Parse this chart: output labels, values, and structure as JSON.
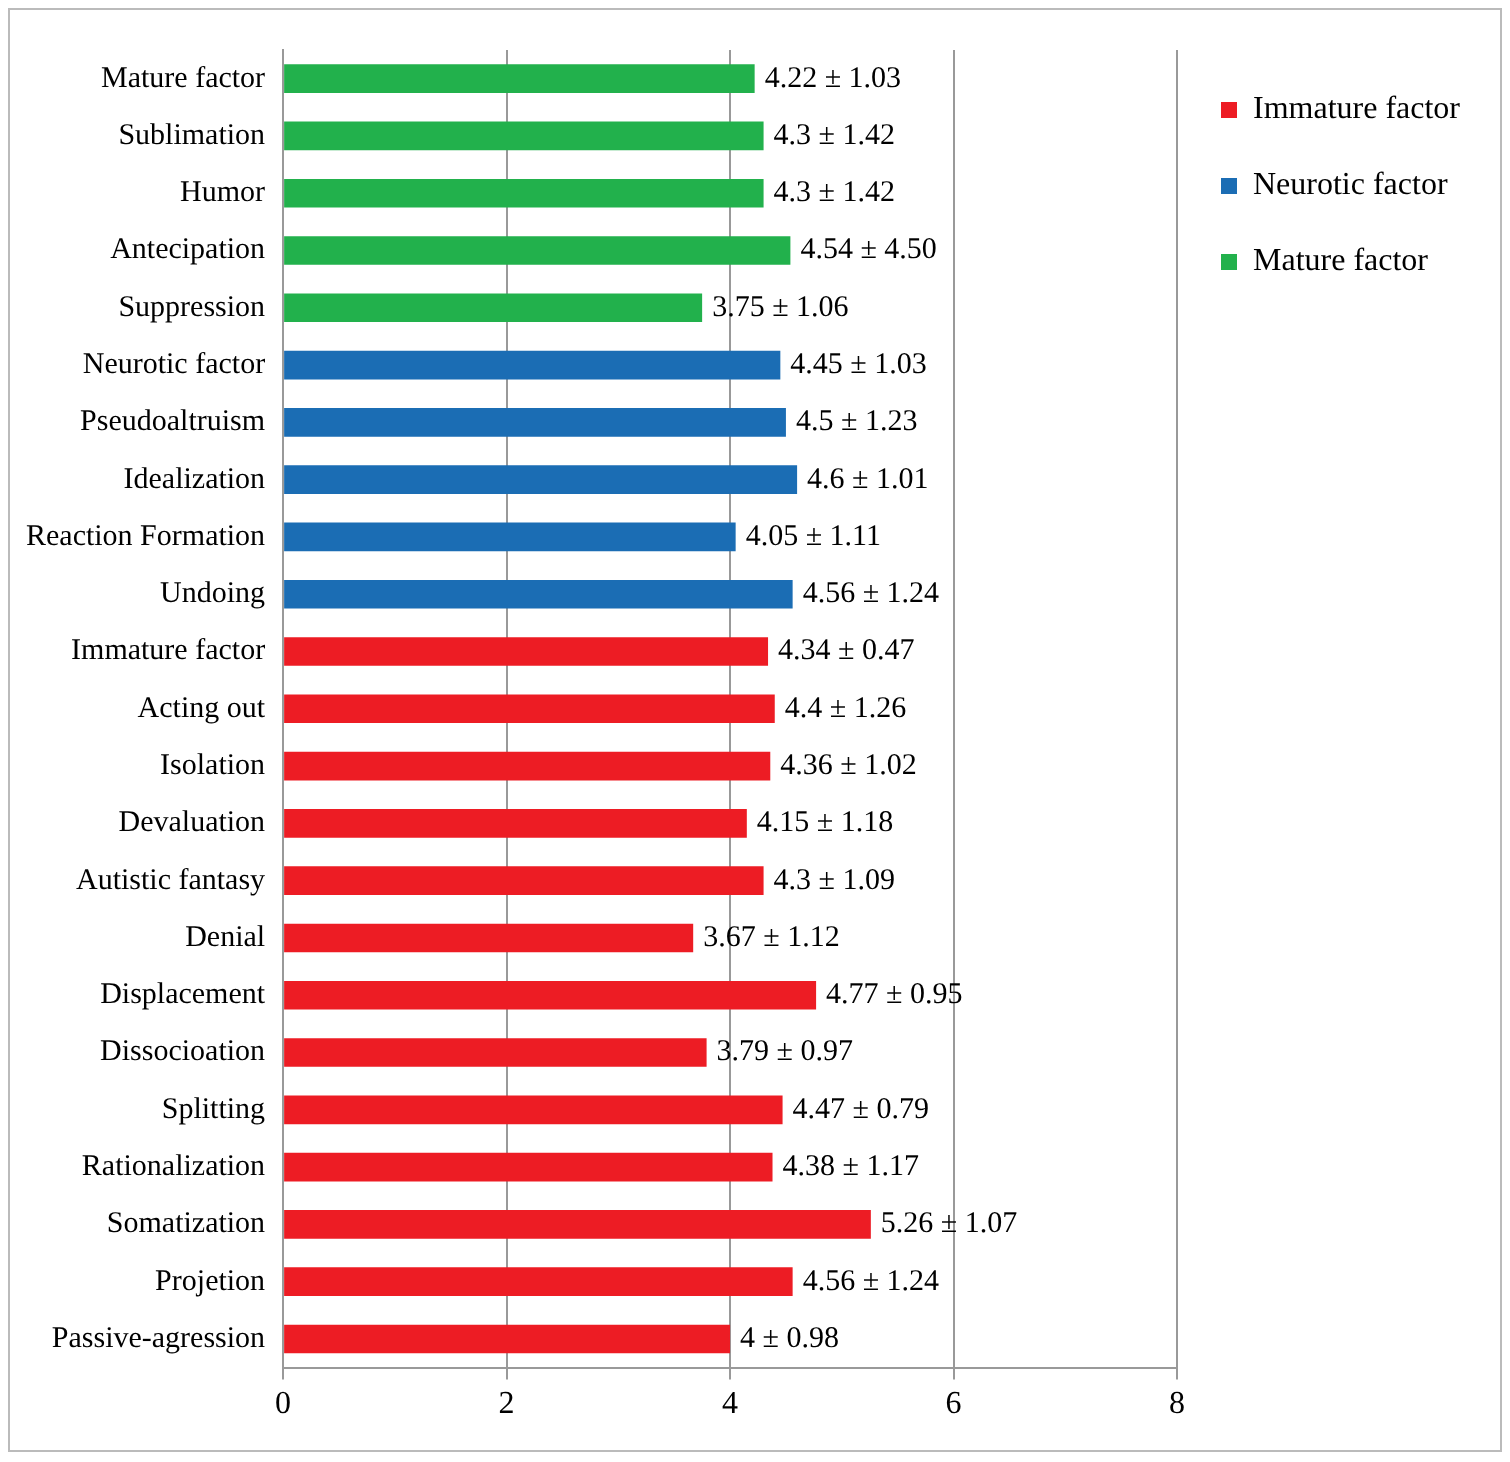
{
  "chart_data": {
    "type": "bar",
    "orientation": "horizontal",
    "categories": [
      "Mature factor",
      "Sublimation",
      "Humor",
      "Antecipation",
      "Suppression",
      "Neurotic factor",
      "Pseudoaltruism",
      "Idealization",
      "Reaction Formation",
      "Undoing",
      "Immature factor",
      "Acting out",
      "Isolation",
      "Devaluation",
      "Autistic fantasy",
      "Denial",
      "Displacement",
      "Dissocioation",
      "Splitting",
      "Rationalization",
      "Somatization",
      "Projetion",
      "Passive-agression"
    ],
    "series": [
      {
        "name": "Immature factor",
        "color": "#ed1c24",
        "values": [
          null,
          null,
          null,
          null,
          null,
          null,
          null,
          null,
          null,
          null,
          4.34,
          4.4,
          4.36,
          4.15,
          4.3,
          3.67,
          4.77,
          3.79,
          4.47,
          4.38,
          5.26,
          4.56,
          4
        ],
        "value_labels": [
          null,
          null,
          null,
          null,
          null,
          null,
          null,
          null,
          null,
          null,
          "4.34 ± 0.47",
          "4.4 ± 1.26",
          "4.36 ± 1.02",
          "4.15 ± 1.18",
          "4.3 ± 1.09",
          "3.67 ± 1.12",
          "4.77 ± 0.95",
          "3.79 ± 0.97",
          "4.47 ± 0.79",
          "4.38 ± 1.17",
          "5.26 ± 1.07",
          "4.56 ± 1.24",
          "4 ± 0.98"
        ]
      },
      {
        "name": "Neurotic factor",
        "color": "#1b6db4",
        "values": [
          null,
          null,
          null,
          null,
          null,
          4.45,
          4.5,
          4.6,
          4.05,
          4.56,
          null,
          null,
          null,
          null,
          null,
          null,
          null,
          null,
          null,
          null,
          null,
          null,
          null
        ],
        "value_labels": [
          null,
          null,
          null,
          null,
          null,
          "4.45 ± 1.03",
          "4.5 ± 1.23",
          "4.6 ± 1.01",
          "4.05 ± 1.11",
          "4.56 ± 1.24",
          null,
          null,
          null,
          null,
          null,
          null,
          null,
          null,
          null,
          null,
          null,
          null,
          null
        ]
      },
      {
        "name": "Mature factor",
        "color": "#22b14c",
        "values": [
          4.22,
          4.3,
          4.3,
          4.54,
          3.75,
          null,
          null,
          null,
          null,
          null,
          null,
          null,
          null,
          null,
          null,
          null,
          null,
          null,
          null,
          null,
          null,
          null,
          null
        ],
        "value_labels": [
          "4.22 ± 1.03",
          "4.3 ± 1.42",
          "4.3 ± 1.42",
          "4.54 ± 4.50",
          "3.75 ± 1.06",
          null,
          null,
          null,
          null,
          null,
          null,
          null,
          null,
          null,
          null,
          null,
          null,
          null,
          null,
          null,
          null,
          null,
          null
        ]
      }
    ],
    "xlim": [
      0,
      8
    ],
    "xticks": [
      0,
      2,
      4,
      6,
      8
    ],
    "grid": "x",
    "legend": "top right"
  }
}
